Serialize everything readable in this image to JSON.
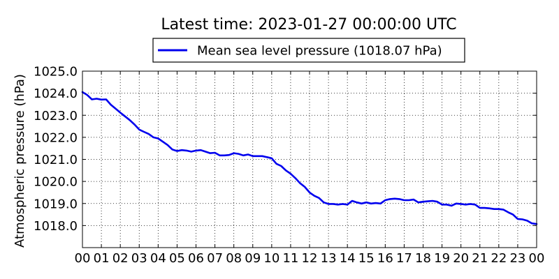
{
  "chart_data": {
    "type": "line",
    "title": "Latest time: 2023-01-27 00:00:00 UTC",
    "xlabel": "",
    "ylabel": "Atmospheric pressure (hPa)",
    "xlim": [
      0,
      24
    ],
    "ylim": [
      1017.0,
      1025.0
    ],
    "x_tick_labels": [
      "00",
      "01",
      "02",
      "03",
      "04",
      "05",
      "06",
      "07",
      "08",
      "09",
      "10",
      "11",
      "12",
      "13",
      "14",
      "15",
      "16",
      "17",
      "18",
      "19",
      "20",
      "21",
      "22",
      "23",
      "00"
    ],
    "y_ticks": [
      1018.0,
      1019.0,
      1020.0,
      1021.0,
      1022.0,
      1023.0,
      1024.0,
      1025.0
    ],
    "y_tick_labels": [
      "1018.0",
      "1019.0",
      "1020.0",
      "1021.0",
      "1022.0",
      "1023.0",
      "1024.0",
      "1025.0"
    ],
    "grid": true,
    "legend_position": "top-center",
    "series": [
      {
        "name": "Mean sea level pressure (1018.07 hPa)",
        "color": "#0000ee",
        "x": [
          0,
          0.25,
          0.5,
          0.75,
          1.0,
          1.25,
          1.5,
          1.75,
          2.0,
          2.25,
          2.5,
          2.75,
          3.0,
          3.25,
          3.5,
          3.75,
          4.0,
          4.25,
          4.5,
          4.75,
          5.0,
          5.25,
          5.5,
          5.75,
          6.0,
          6.25,
          6.5,
          6.75,
          7.0,
          7.25,
          7.5,
          7.75,
          8.0,
          8.25,
          8.5,
          8.75,
          9.0,
          9.25,
          9.5,
          9.75,
          10.0,
          10.25,
          10.5,
          10.75,
          11.0,
          11.25,
          11.5,
          11.75,
          12.0,
          12.25,
          12.5,
          12.75,
          13.0,
          13.25,
          13.5,
          13.75,
          14.0,
          14.25,
          14.5,
          14.75,
          15.0,
          15.25,
          15.5,
          15.75,
          16.0,
          16.25,
          16.5,
          16.75,
          17.0,
          17.25,
          17.5,
          17.75,
          18.0,
          18.25,
          18.5,
          18.75,
          19.0,
          19.25,
          19.5,
          19.75,
          20.0,
          20.25,
          20.5,
          20.75,
          21.0,
          21.25,
          21.5,
          21.75,
          22.0,
          22.25,
          22.5,
          22.75,
          23.0,
          23.25,
          23.5,
          23.75,
          24.0
        ],
        "y": [
          1024.05,
          1023.92,
          1023.72,
          1023.75,
          1023.71,
          1023.72,
          1023.48,
          1023.3,
          1023.12,
          1022.95,
          1022.78,
          1022.58,
          1022.35,
          1022.25,
          1022.15,
          1022.0,
          1021.95,
          1021.8,
          1021.65,
          1021.45,
          1021.38,
          1021.42,
          1021.4,
          1021.35,
          1021.4,
          1021.42,
          1021.35,
          1021.28,
          1021.3,
          1021.18,
          1021.18,
          1021.2,
          1021.28,
          1021.25,
          1021.18,
          1021.22,
          1021.15,
          1021.15,
          1021.15,
          1021.1,
          1021.05,
          1020.8,
          1020.7,
          1020.5,
          1020.35,
          1020.15,
          1019.92,
          1019.75,
          1019.5,
          1019.35,
          1019.25,
          1019.05,
          1018.98,
          1018.98,
          1018.95,
          1018.98,
          1018.95,
          1019.12,
          1019.05,
          1019.0,
          1019.05,
          1019.0,
          1019.02,
          1019.0,
          1019.15,
          1019.2,
          1019.22,
          1019.2,
          1019.15,
          1019.15,
          1019.18,
          1019.05,
          1019.08,
          1019.1,
          1019.12,
          1019.08,
          1018.95,
          1018.95,
          1018.9,
          1019.0,
          1018.98,
          1018.95,
          1018.98,
          1018.95,
          1018.8,
          1018.8,
          1018.78,
          1018.75,
          1018.75,
          1018.72,
          1018.6,
          1018.5,
          1018.3,
          1018.28,
          1018.22,
          1018.1,
          1018.07
        ]
      }
    ]
  }
}
